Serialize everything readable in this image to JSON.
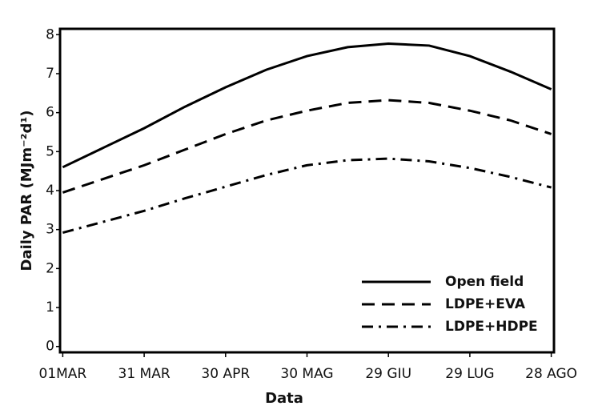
{
  "chart_data": {
    "type": "line",
    "x_label": "Data",
    "y_label": "Daily PAR (MJm⁻²d¹)",
    "x": [
      0,
      15,
      30,
      45,
      60,
      75,
      90,
      105,
      120,
      135,
      150,
      165,
      180
    ],
    "series": [
      {
        "name": "Open field",
        "color": "#000000",
        "dash": "solid",
        "values": [
          4.6,
          5.1,
          5.6,
          6.15,
          6.65,
          7.1,
          7.45,
          7.68,
          7.77,
          7.72,
          7.45,
          7.05,
          6.6
        ]
      },
      {
        "name": "LDPE+EVA",
        "color": "#000000",
        "dash": "dashed",
        "values": [
          3.95,
          4.3,
          4.65,
          5.05,
          5.45,
          5.8,
          6.05,
          6.25,
          6.32,
          6.25,
          6.05,
          5.8,
          5.45
        ]
      },
      {
        "name": "LDPE+HDPE",
        "color": "#000000",
        "dash": "dashdot",
        "values": [
          2.92,
          3.2,
          3.48,
          3.8,
          4.1,
          4.4,
          4.65,
          4.78,
          4.82,
          4.75,
          4.58,
          4.35,
          4.08
        ]
      }
    ],
    "xlim": [
      -1,
      181
    ],
    "xticks": [
      {
        "value": 0,
        "label": "01MAR"
      },
      {
        "value": 30,
        "label": "31 MAR"
      },
      {
        "value": 60,
        "label": "30 APR"
      },
      {
        "value": 90,
        "label": "30 MAG"
      },
      {
        "value": 120,
        "label": "29 GIU"
      },
      {
        "value": 150,
        "label": "29 LUG"
      },
      {
        "value": 180,
        "label": "28 AGO"
      }
    ],
    "ylim": [
      -0.15,
      8.15
    ],
    "yticks": [
      0,
      1,
      2,
      3,
      4,
      5,
      6,
      7,
      8
    ],
    "legend": "lower right"
  }
}
